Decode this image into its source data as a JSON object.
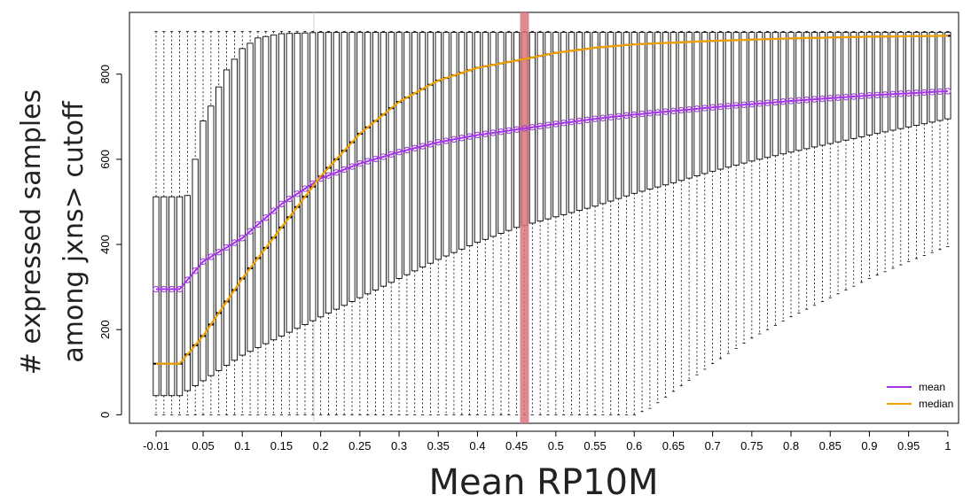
{
  "chart_data": {
    "type": "box",
    "xlabel": "Mean RP10M",
    "ylabel_line1": "# expressed samples",
    "ylabel_line2": "among jxns> cutoff",
    "x_min": -0.01,
    "x_step": 0.01,
    "x_tick_labels": [
      "-0.01",
      "0.05",
      "0.1",
      "0.15",
      "0.2",
      "0.25",
      "0.3",
      "0.35",
      "0.4",
      "0.45",
      "0.5",
      "0.55",
      "0.6",
      "0.65",
      "0.7",
      "0.75",
      "0.8",
      "0.85",
      "0.9",
      "0.95",
      "1"
    ],
    "y_ticks": [
      0,
      200,
      400,
      600,
      800
    ],
    "ylim": [
      -20,
      945
    ],
    "whisker_top": 900,
    "highlight_x": 0.46,
    "highlight_color": "#d9747d",
    "legend": [
      {
        "label": "mean",
        "color": "#a335e6"
      },
      {
        "label": "median",
        "color": "#f0a000"
      }
    ],
    "mean_series_color": "#a335e6",
    "median_series_color": "#f0a000",
    "median_control_points": [
      [
        -0.01,
        120
      ],
      [
        0.02,
        120
      ],
      [
        0.05,
        185
      ],
      [
        0.1,
        320
      ],
      [
        0.15,
        440
      ],
      [
        0.2,
        560
      ],
      [
        0.25,
        660
      ],
      [
        0.3,
        735
      ],
      [
        0.35,
        785
      ],
      [
        0.4,
        815
      ],
      [
        0.45,
        832
      ],
      [
        0.5,
        850
      ],
      [
        0.55,
        862
      ],
      [
        0.6,
        870
      ],
      [
        0.7,
        878
      ],
      [
        0.8,
        884
      ],
      [
        0.9,
        888
      ],
      [
        1,
        890
      ]
    ],
    "mean_control_points": [
      [
        -0.01,
        295
      ],
      [
        0.02,
        295
      ],
      [
        0.05,
        360
      ],
      [
        0.1,
        415
      ],
      [
        0.15,
        495
      ],
      [
        0.2,
        555
      ],
      [
        0.25,
        590
      ],
      [
        0.3,
        617
      ],
      [
        0.35,
        640
      ],
      [
        0.4,
        657
      ],
      [
        0.45,
        670
      ],
      [
        0.5,
        683
      ],
      [
        0.55,
        695
      ],
      [
        0.6,
        705
      ],
      [
        0.7,
        722
      ],
      [
        0.8,
        737
      ],
      [
        0.9,
        750
      ],
      [
        1,
        760
      ]
    ],
    "q3_control_points": [
      [
        -0.01,
        512
      ],
      [
        0.02,
        512
      ],
      [
        0.03,
        515
      ],
      [
        0.04,
        600
      ],
      [
        0.05,
        690
      ],
      [
        0.06,
        725
      ],
      [
        0.07,
        770
      ],
      [
        0.08,
        810
      ],
      [
        0.09,
        835
      ],
      [
        0.1,
        860
      ],
      [
        0.12,
        885
      ],
      [
        0.15,
        895
      ],
      [
        0.2,
        898
      ],
      [
        1,
        898
      ]
    ],
    "q1_control_points": [
      [
        -0.01,
        45
      ],
      [
        0.02,
        45
      ],
      [
        0.05,
        80
      ],
      [
        0.1,
        140
      ],
      [
        0.15,
        185
      ],
      [
        0.2,
        230
      ],
      [
        0.25,
        275
      ],
      [
        0.3,
        320
      ],
      [
        0.35,
        365
      ],
      [
        0.4,
        405
      ],
      [
        0.45,
        440
      ],
      [
        0.5,
        465
      ],
      [
        0.55,
        490
      ],
      [
        0.6,
        520
      ],
      [
        0.65,
        545
      ],
      [
        0.7,
        572
      ],
      [
        0.75,
        596
      ],
      [
        0.8,
        617
      ],
      [
        0.85,
        637
      ],
      [
        0.9,
        657
      ],
      [
        0.95,
        676
      ],
      [
        1,
        695
      ]
    ],
    "whisker_low_control_points": [
      [
        -0.01,
        0
      ],
      [
        0.6,
        0
      ],
      [
        0.62,
        15
      ],
      [
        0.65,
        55
      ],
      [
        0.7,
        120
      ],
      [
        0.75,
        180
      ],
      [
        0.8,
        230
      ],
      [
        0.85,
        275
      ],
      [
        0.9,
        320
      ],
      [
        0.95,
        360
      ],
      [
        1,
        395
      ]
    ]
  }
}
